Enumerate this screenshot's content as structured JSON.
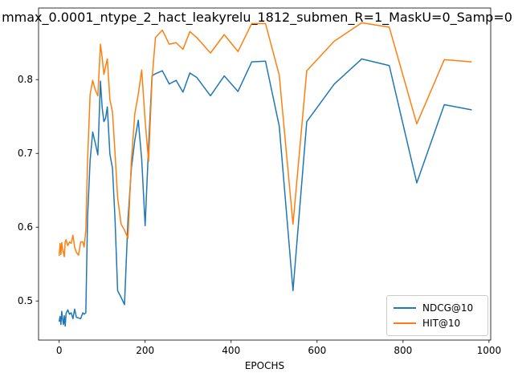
{
  "chart_data": {
    "type": "line",
    "title": "mmax_0.0001_ntype_2_hact_leakyrelu_1812_submen_R=1_MaskU=0_Samp=0",
    "xlabel": "EPOCHS",
    "ylabel": "",
    "xlim": [
      -48,
      1004
    ],
    "ylim": [
      0.447,
      0.897
    ],
    "xticks": [
      0,
      200,
      400,
      600,
      800,
      1000
    ],
    "yticks": [
      0.5,
      0.6,
      0.7,
      0.8
    ],
    "grid": false,
    "legend_position": "lower-right",
    "series": [
      {
        "name": "NDCG@10",
        "color": "#1f77b4",
        "x": [
          0,
          2,
          4,
          6,
          8,
          10,
          12,
          14,
          16,
          20,
          24,
          28,
          32,
          36,
          40,
          45,
          50,
          55,
          58,
          62,
          66,
          72,
          78,
          84,
          90,
          96,
          100,
          104,
          108,
          112,
          118,
          124,
          130,
          136,
          144,
          152,
          160,
          168,
          176,
          184,
          192,
          200,
          208,
          216,
          224,
          240,
          256,
          272,
          288,
          304,
          320,
          352,
          384,
          416,
          448,
          480,
          512,
          544,
          576,
          640,
          704,
          768,
          832,
          896,
          960
        ],
        "y": [
          0.472,
          0.479,
          0.468,
          0.486,
          0.475,
          0.468,
          0.48,
          0.466,
          0.483,
          0.488,
          0.482,
          0.484,
          0.476,
          0.489,
          0.478,
          0.477,
          0.476,
          0.484,
          0.482,
          0.484,
          0.613,
          0.691,
          0.729,
          0.714,
          0.698,
          0.798,
          0.762,
          0.743,
          0.748,
          0.763,
          0.699,
          0.68,
          0.61,
          0.514,
          0.505,
          0.495,
          0.61,
          0.68,
          0.718,
          0.745,
          0.692,
          0.602,
          0.71,
          0.805,
          0.808,
          0.812,
          0.794,
          0.799,
          0.783,
          0.809,
          0.803,
          0.778,
          0.805,
          0.784,
          0.824,
          0.825,
          0.737,
          0.514,
          0.743,
          0.794,
          0.828,
          0.819,
          0.66,
          0.766,
          0.759
        ]
      },
      {
        "name": "HIT@10",
        "color": "#ff7f0e",
        "x": [
          0,
          2,
          4,
          6,
          8,
          10,
          12,
          14,
          16,
          20,
          24,
          28,
          32,
          36,
          40,
          45,
          50,
          55,
          58,
          62,
          66,
          72,
          78,
          84,
          90,
          96,
          100,
          104,
          108,
          112,
          118,
          124,
          130,
          136,
          144,
          152,
          160,
          168,
          176,
          184,
          192,
          200,
          208,
          216,
          224,
          240,
          256,
          272,
          288,
          304,
          320,
          352,
          384,
          416,
          448,
          480,
          512,
          544,
          576,
          640,
          704,
          768,
          832,
          896,
          960
        ],
        "y": [
          0.561,
          0.578,
          0.563,
          0.579,
          0.571,
          0.565,
          0.56,
          0.58,
          0.583,
          0.575,
          0.58,
          0.578,
          0.589,
          0.573,
          0.566,
          0.562,
          0.58,
          0.58,
          0.573,
          0.596,
          0.69,
          0.78,
          0.799,
          0.786,
          0.778,
          0.848,
          0.83,
          0.807,
          0.818,
          0.828,
          0.773,
          0.756,
          0.7,
          0.64,
          0.604,
          0.596,
          0.585,
          0.69,
          0.754,
          0.78,
          0.813,
          0.744,
          0.689,
          0.8,
          0.857,
          0.867,
          0.848,
          0.85,
          0.841,
          0.865,
          0.857,
          0.836,
          0.861,
          0.838,
          0.876,
          0.876,
          0.806,
          0.604,
          0.812,
          0.852,
          0.877,
          0.871,
          0.74,
          0.827,
          0.824
        ]
      }
    ]
  }
}
